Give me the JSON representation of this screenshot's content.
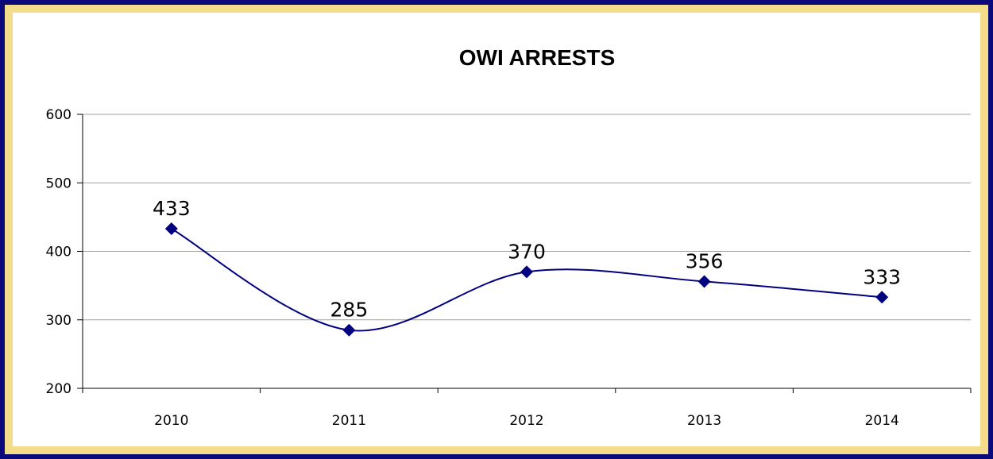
{
  "chart_data": {
    "type": "line",
    "title": "OWI ARRESTS",
    "categories": [
      "2010",
      "2011",
      "2012",
      "2013",
      "2014"
    ],
    "series": [
      {
        "values": [
          433,
          285,
          370,
          356,
          333
        ]
      }
    ],
    "data_labels": [
      "433",
      "285",
      "370",
      "356",
      "333"
    ],
    "ylim": [
      200,
      600
    ],
    "yticks": [
      200,
      300,
      400,
      500,
      600
    ],
    "grid": true,
    "smooth": true,
    "marker": "diamond",
    "colors": {
      "line": "#000080",
      "frame": "#0a0a7a",
      "border": "#f3dc8a",
      "grid": "#a0a0a0"
    }
  }
}
